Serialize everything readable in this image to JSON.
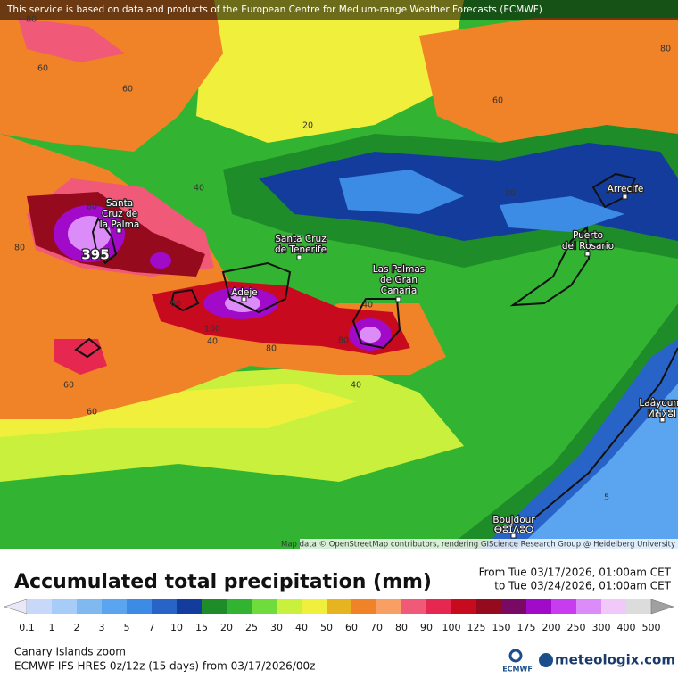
{
  "header": {
    "notice": "This service is based on data and products of the European Centre for Medium-range Weather Forecasts (ECMWF)"
  },
  "map": {
    "places": [
      {
        "lines": [
          "Santa",
          "Cruz de",
          "la Palma"
        ]
      },
      {
        "lines": [
          "Santa Cruz",
          "de Tenerife"
        ]
      },
      {
        "lines": [
          "Adeje"
        ]
      },
      {
        "lines": [
          "Las Palmas",
          "de Gran",
          "Canaria"
        ]
      },
      {
        "lines": [
          "Puerto",
          "del Rosario"
        ]
      },
      {
        "lines": [
          "Arrecife"
        ]
      },
      {
        "lines": [
          "Laâyoune",
          "ⵍⵄⵢⵓⵏ"
        ]
      },
      {
        "lines": [
          "Boujdour",
          "ⴱⵓⵊⴷⵓⵔ"
        ]
      }
    ],
    "contour_labels": [
      80,
      60,
      60,
      80,
      60,
      20,
      40,
      20,
      80,
      80,
      395,
      60,
      100,
      40,
      80,
      80,
      40,
      40,
      60,
      60,
      5
    ],
    "attribution": "Map data © OpenStreetMap contributors, rendering GIScience Research Group @ Heidelberg University"
  },
  "legend": {
    "title": "Accumulated total precipitation (mm)",
    "period": [
      "From Tue 03/17/2026, 01:00am CET",
      "to Tue 03/24/2026, 01:00am CET"
    ],
    "levels": [
      0.1,
      1,
      2,
      3,
      5,
      7,
      10,
      15,
      20,
      25,
      30,
      40,
      50,
      60,
      70,
      80,
      90,
      100,
      125,
      150,
      175,
      200,
      250,
      300,
      400,
      500
    ],
    "colors": [
      "#c8d8f8",
      "#a8ccf8",
      "#80b8f0",
      "#5aa4f0",
      "#3c8ce6",
      "#2864c8",
      "#143c9c",
      "#1e8c28",
      "#32b432",
      "#6edc3c",
      "#c8f03c",
      "#f0f03c",
      "#e6b41e",
      "#f08228",
      "#f8a064",
      "#f05a78",
      "#e62850",
      "#c80a1e",
      "#960a1e",
      "#780a64",
      "#a00ac8",
      "#c83cf0",
      "#dc8cf8",
      "#f0c8fa",
      "#dcdcdc"
    ],
    "under_color": "#e8e8f8",
    "over_color": "#a0a0a0"
  },
  "footer": {
    "region": "Canary Islands zoom",
    "model": "ECMWF IFS HRES 0z/12z (15 days) from  03/17/2026/00z",
    "ecmwf_logo": "ECMWF",
    "brand": "meteologix.com"
  }
}
